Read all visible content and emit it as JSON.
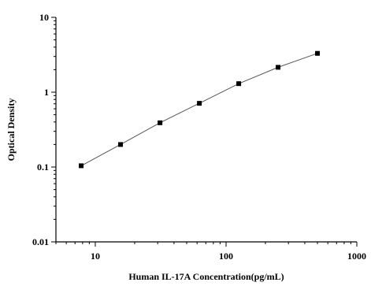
{
  "chart_data": {
    "type": "line",
    "xlabel": "Human IL-17A Concentration(pg/mL)",
    "ylabel": "Optical Density",
    "xscale": "log",
    "yscale": "log",
    "xlim": [
      5,
      1000
    ],
    "ylim": [
      0.01,
      10
    ],
    "xticks": [
      {
        "value": 10,
        "label": "10"
      },
      {
        "value": 100,
        "label": "100"
      },
      {
        "value": 1000,
        "label": "1000"
      }
    ],
    "yticks": [
      {
        "value": 0.01,
        "label": "0.01"
      },
      {
        "value": 0.1,
        "label": "0.1"
      },
      {
        "value": 1,
        "label": "1"
      },
      {
        "value": 10,
        "label": "10"
      }
    ],
    "grid": false,
    "marker": "square",
    "color": "#000000",
    "series": [
      {
        "x": [
          7.8,
          15.6,
          31.25,
          62.5,
          125,
          250,
          500
        ],
        "y": [
          0.104,
          0.2,
          0.39,
          0.71,
          1.3,
          2.15,
          3.3
        ]
      }
    ]
  }
}
